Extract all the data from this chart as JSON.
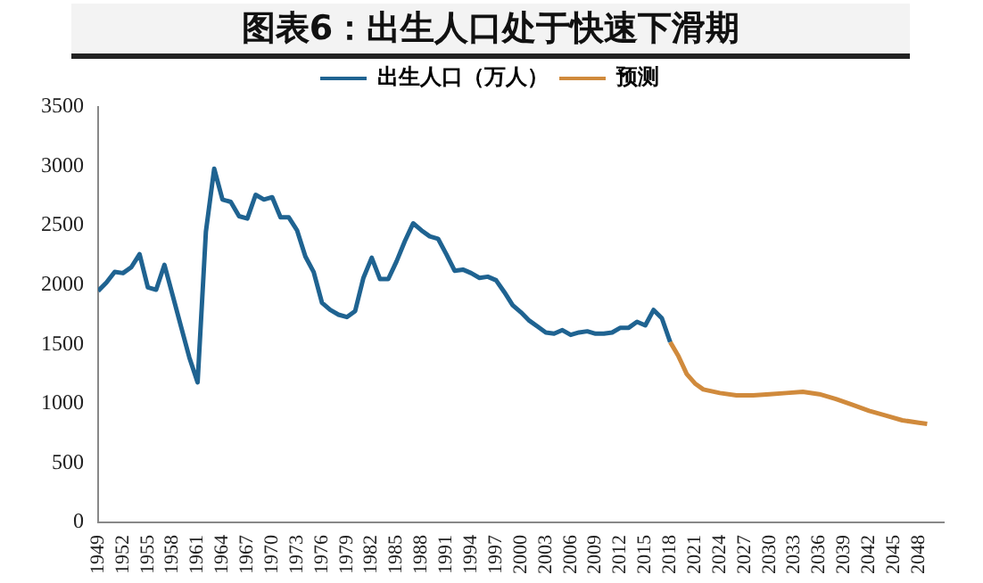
{
  "chart_data": {
    "type": "line",
    "title": "图表6：出生人口处于快速下滑期",
    "legend": "top",
    "grid": false,
    "marker": "none",
    "line_style": "solid",
    "xlim": [
      1949,
      2051
    ],
    "xticks": [
      1949,
      1952,
      1955,
      1958,
      1961,
      1964,
      1967,
      1970,
      1973,
      1976,
      1979,
      1982,
      1985,
      1988,
      1991,
      1994,
      1997,
      2000,
      2003,
      2006,
      2009,
      2012,
      2015,
      2018,
      2021,
      2024,
      2027,
      2030,
      2033,
      2036,
      2039,
      2042,
      2045,
      2048
    ],
    "ylim": [
      0,
      3500
    ],
    "yticks": [
      0,
      500,
      1000,
      1500,
      2000,
      2500,
      3000,
      3500
    ],
    "series": [
      {
        "name": "出生人口（万人）",
        "color": "#1f6391",
        "x": [
          1949,
          1950,
          1951,
          1952,
          1953,
          1954,
          1955,
          1956,
          1957,
          1958,
          1959,
          1960,
          1961,
          1962,
          1963,
          1964,
          1965,
          1966,
          1967,
          1968,
          1969,
          1970,
          1971,
          1972,
          1973,
          1974,
          1975,
          1976,
          1977,
          1978,
          1979,
          1980,
          1981,
          1982,
          1983,
          1984,
          1985,
          1986,
          1987,
          1988,
          1989,
          1990,
          1991,
          1992,
          1993,
          1994,
          1995,
          1996,
          1997,
          1998,
          1999,
          2000,
          2001,
          2002,
          2003,
          2004,
          2005,
          2006,
          2007,
          2008,
          2009,
          2010,
          2011,
          2012,
          2013,
          2014,
          2015,
          2016,
          2017,
          2018
        ],
        "values": [
          1950,
          2020,
          2110,
          2100,
          2150,
          2260,
          1980,
          1960,
          2170,
          1910,
          1650,
          1390,
          1180,
          2450,
          2980,
          2720,
          2700,
          2580,
          2560,
          2760,
          2720,
          2740,
          2570,
          2570,
          2460,
          2240,
          2110,
          1850,
          1790,
          1750,
          1730,
          1780,
          2060,
          2230,
          2050,
          2050,
          2200,
          2370,
          2520,
          2460,
          2410,
          2390,
          2260,
          2120,
          2130,
          2100,
          2060,
          2070,
          2040,
          1940,
          1830,
          1770,
          1700,
          1650,
          1600,
          1590,
          1620,
          1580,
          1600,
          1610,
          1590,
          1590,
          1600,
          1640,
          1640,
          1690,
          1660,
          1790,
          1720,
          1520
        ]
      },
      {
        "name": "预测",
        "color": "#d08a3c",
        "x": [
          2018,
          2019,
          2020,
          2021,
          2022,
          2024,
          2026,
          2028,
          2030,
          2032,
          2034,
          2036,
          2038,
          2040,
          2042,
          2044,
          2046,
          2048,
          2049
        ],
        "values": [
          1520,
          1400,
          1250,
          1170,
          1120,
          1090,
          1070,
          1070,
          1080,
          1090,
          1100,
          1080,
          1040,
          990,
          940,
          900,
          860,
          840,
          830
        ]
      }
    ]
  }
}
